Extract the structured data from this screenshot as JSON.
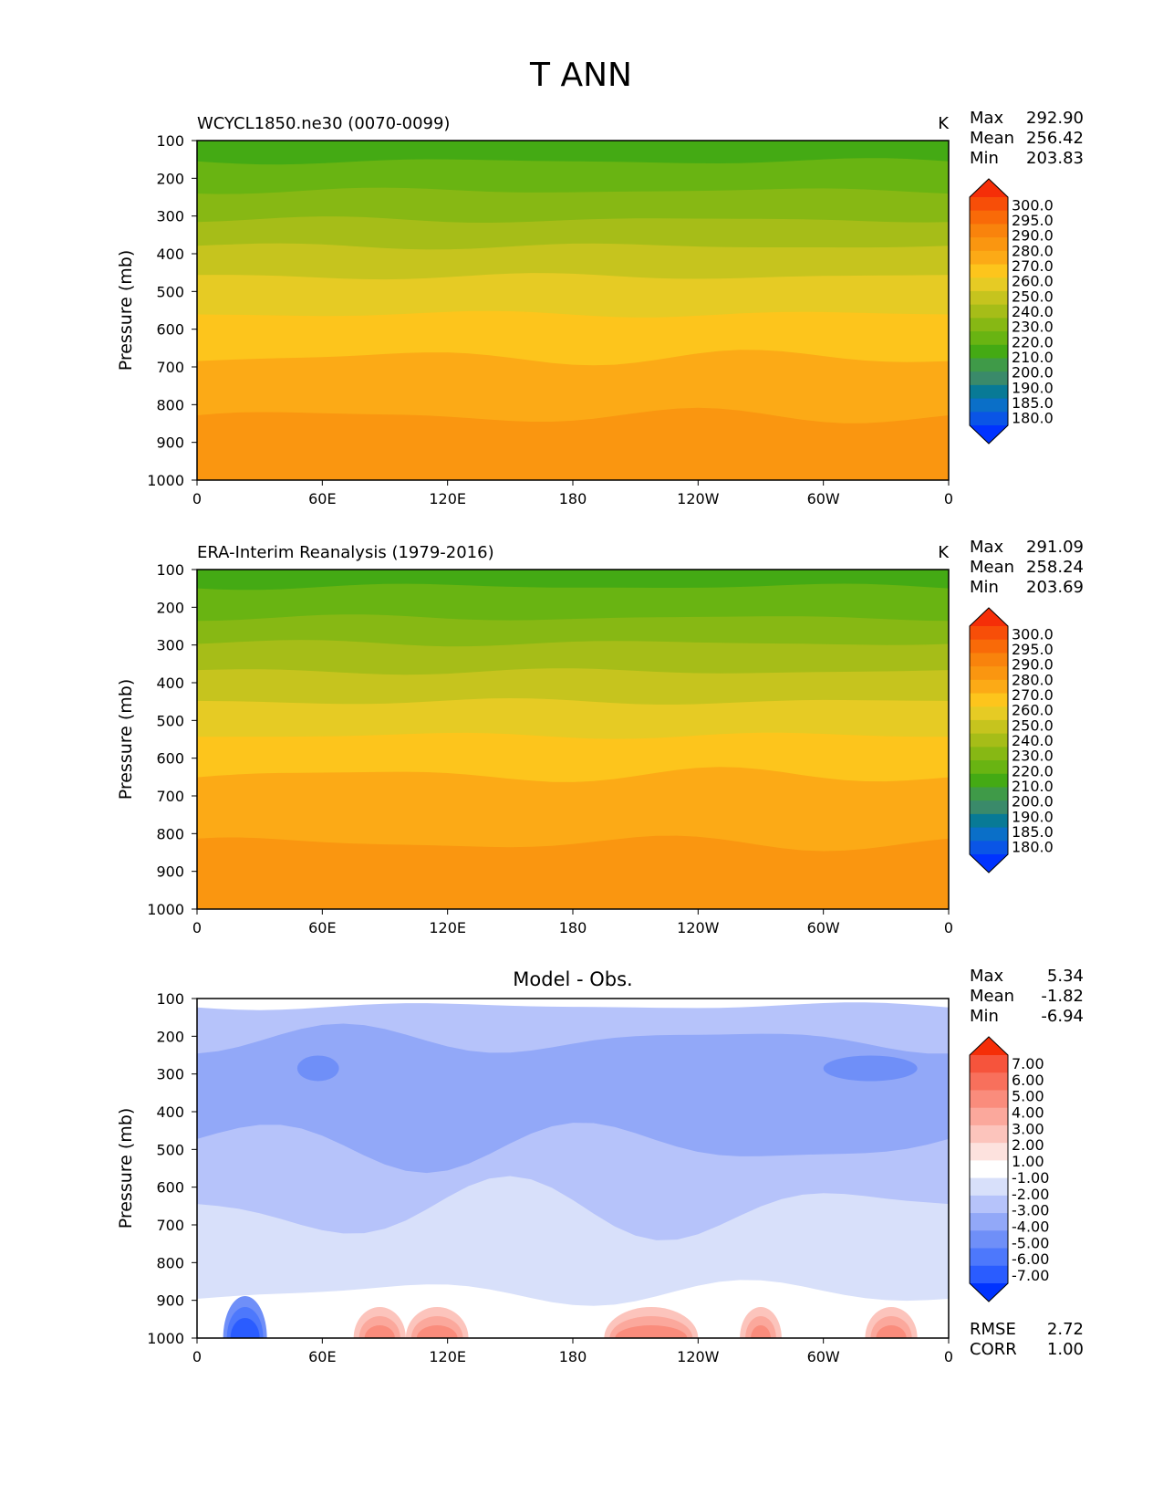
{
  "figure_title": "T ANN",
  "colors": {
    "abs_levels": [
      "#0033ff",
      "#0a55e6",
      "#0a6fc8",
      "#087a96",
      "#3a8a6a",
      "#3f9a48",
      "#44aa14",
      "#69b412",
      "#87b814",
      "#a6bd18",
      "#c6c41e",
      "#e6cb24",
      "#fdc51c",
      "#fcaa16",
      "#fa9610",
      "#f9830c",
      "#f96a08",
      "#f74e08",
      "#f52e08"
    ],
    "diff_levels": [
      "#0033ff",
      "#2a5cff",
      "#4d78fc",
      "#6f8ff8",
      "#92a8f8",
      "#b6c3fa",
      "#d8e0fa",
      "#ffffff",
      "#fde2de",
      "#fcc4bc",
      "#fba89c",
      "#fa8c7c",
      "#f8705c",
      "#f6543c",
      "#f52e08"
    ]
  },
  "chart_data": [
    {
      "type": "heatmap",
      "subtitle": "WCYCL1850.ne30 (0070-0099)",
      "units": "K",
      "stats": [
        {
          "label": "Max",
          "value": "292.90"
        },
        {
          "label": "Mean",
          "value": "256.42"
        },
        {
          "label": "Min",
          "value": "203.83"
        }
      ],
      "ylabel": "Pressure (mb)",
      "ylim": [
        1000,
        100
      ],
      "y_ticks": [
        "100",
        "200",
        "300",
        "400",
        "500",
        "600",
        "700",
        "800",
        "900",
        "1000"
      ],
      "x_ticks": [
        "0",
        "60E",
        "120E",
        "180",
        "120W",
        "60W",
        "0"
      ],
      "colorbar_levels": [
        "180.0",
        "185.0",
        "190.0",
        "200.0",
        "210.0",
        "220.0",
        "230.0",
        "240.0",
        "250.0",
        "260.0",
        "270.0",
        "280.0",
        "290.0",
        "295.0",
        "300.0"
      ],
      "contour_boundaries_mb": [
        155,
        233,
        310,
        380,
        460,
        560,
        675,
        830
      ],
      "band_values_K": [
        212,
        222,
        232,
        242,
        252,
        262,
        272,
        282,
        290
      ]
    },
    {
      "type": "heatmap",
      "subtitle": "ERA-Interim Reanalysis (1979-2016)",
      "units": "K",
      "stats": [
        {
          "label": "Max",
          "value": "291.09"
        },
        {
          "label": "Mean",
          "value": "258.24"
        },
        {
          "label": "Min",
          "value": "203.69"
        }
      ],
      "ylabel": "Pressure (mb)",
      "ylim": [
        1000,
        100
      ],
      "y_ticks": [
        "100",
        "200",
        "300",
        "400",
        "500",
        "600",
        "700",
        "800",
        "900",
        "1000"
      ],
      "x_ticks": [
        "0",
        "60E",
        "120E",
        "180",
        "120W",
        "60W",
        "0"
      ],
      "colorbar_levels": [
        "180.0",
        "185.0",
        "190.0",
        "200.0",
        "210.0",
        "220.0",
        "230.0",
        "240.0",
        "250.0",
        "260.0",
        "270.0",
        "280.0",
        "290.0",
        "295.0",
        "300.0"
      ],
      "contour_boundaries_mb": [
        145,
        228,
        295,
        370,
        450,
        540,
        645,
        825
      ],
      "band_values_K": [
        212,
        222,
        232,
        242,
        252,
        262,
        272,
        282,
        290
      ]
    },
    {
      "type": "heatmap",
      "subtitle": "Model - Obs.",
      "units": "",
      "stats": [
        {
          "label": "Max",
          "value": "5.34"
        },
        {
          "label": "Mean",
          "value": "-1.82"
        },
        {
          "label": "Min",
          "value": "-6.94"
        }
      ],
      "extra_stats": [
        {
          "label": "RMSE",
          "value": "2.72"
        },
        {
          "label": "CORR",
          "value": "1.00"
        }
      ],
      "ylabel": "Pressure (mb)",
      "ylim": [
        1000,
        100
      ],
      "y_ticks": [
        "100",
        "200",
        "300",
        "400",
        "500",
        "600",
        "700",
        "800",
        "900",
        "1000"
      ],
      "x_ticks": [
        "0",
        "60E",
        "120E",
        "180",
        "120W",
        "60W",
        "0"
      ],
      "colorbar_levels": [
        "-7.00",
        "-6.00",
        "-5.00",
        "-4.00",
        "-3.00",
        "-2.00",
        "-1.00",
        "1.00",
        "2.00",
        "3.00",
        "4.00",
        "5.00",
        "6.00",
        "7.00"
      ],
      "contour_boundaries_mb": [
        120,
        210,
        490,
        660,
        880
      ],
      "band_values_K": [
        0,
        -2.5,
        -3.5,
        -2.5,
        -1.5,
        0.5
      ],
      "warm_patches_K": [
        2.5,
        3.5,
        4.5
      ],
      "cold_patch_K": -6.5
    }
  ]
}
